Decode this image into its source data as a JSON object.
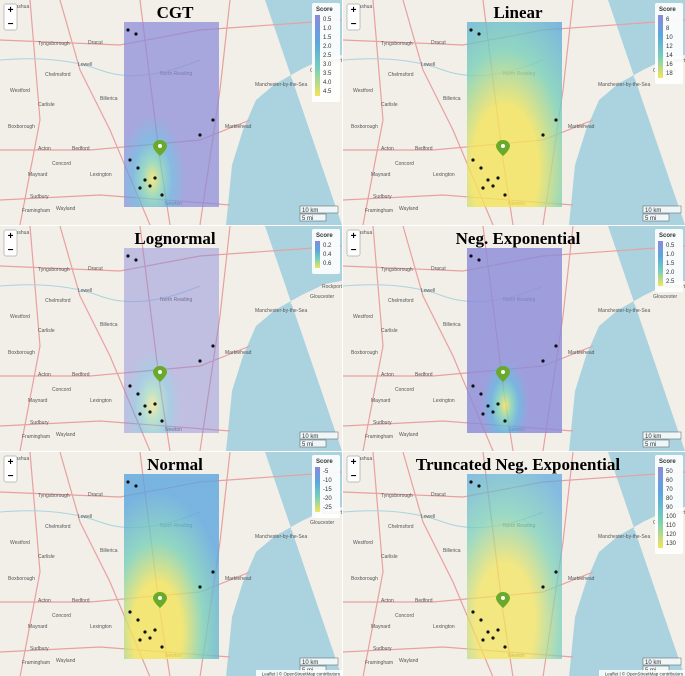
{
  "map": {
    "color_scale": [
      "#8a8ad8",
      "#5ba6de",
      "#78d0b8",
      "#f3e45a"
    ],
    "marker_color": "#6aaa2a",
    "place_labels": [
      "Nashua",
      "Tyngsborough",
      "Dracut",
      "Lowell",
      "Chelmsford",
      "Westford",
      "Billerica",
      "Carlisle",
      "Boxborough",
      "Acton",
      "Bedford",
      "Concord",
      "Maynard",
      "Lexington",
      "Sudbury",
      "Wayland",
      "Framingham",
      "North Reading",
      "Manchester-by-the-Sea",
      "Gloucester",
      "Rockport",
      "Marblehead",
      "Newton"
    ],
    "zoom_in": "+",
    "zoom_out": "−",
    "scale": {
      "km": "10 km",
      "mi": "5 mi"
    },
    "attribution": "Leaflet | © OpenStreetMap contributors",
    "panels": [
      {
        "title": "CGT",
        "legend_title": "Score",
        "legend_labels": [
          "0.5",
          "1.0",
          "1.5",
          "2.0",
          "2.5",
          "3.0",
          "3.5",
          "4.0",
          "4.5"
        ]
      },
      {
        "title": "Linear",
        "legend_title": "Score",
        "legend_labels": [
          "6",
          "8",
          "10",
          "12",
          "14",
          "16",
          "18"
        ]
      },
      {
        "title": "Lognormal",
        "legend_title": "Score",
        "legend_labels": [
          "0.2",
          "0.4",
          "0.6"
        ]
      },
      {
        "title": "Neg. Exponential",
        "legend_title": "Score",
        "legend_labels": [
          "0.5",
          "1.0",
          "1.5",
          "2.0",
          "2.5"
        ]
      },
      {
        "title": "Normal",
        "legend_title": "Score",
        "legend_labels": [
          "-5",
          "-10",
          "-15",
          "-20",
          "-25"
        ]
      },
      {
        "title": "Truncated Neg. Exponential",
        "legend_title": "Score",
        "legend_labels": [
          "50",
          "60",
          "70",
          "80",
          "90",
          "100",
          "110",
          "120",
          "130"
        ]
      }
    ]
  }
}
